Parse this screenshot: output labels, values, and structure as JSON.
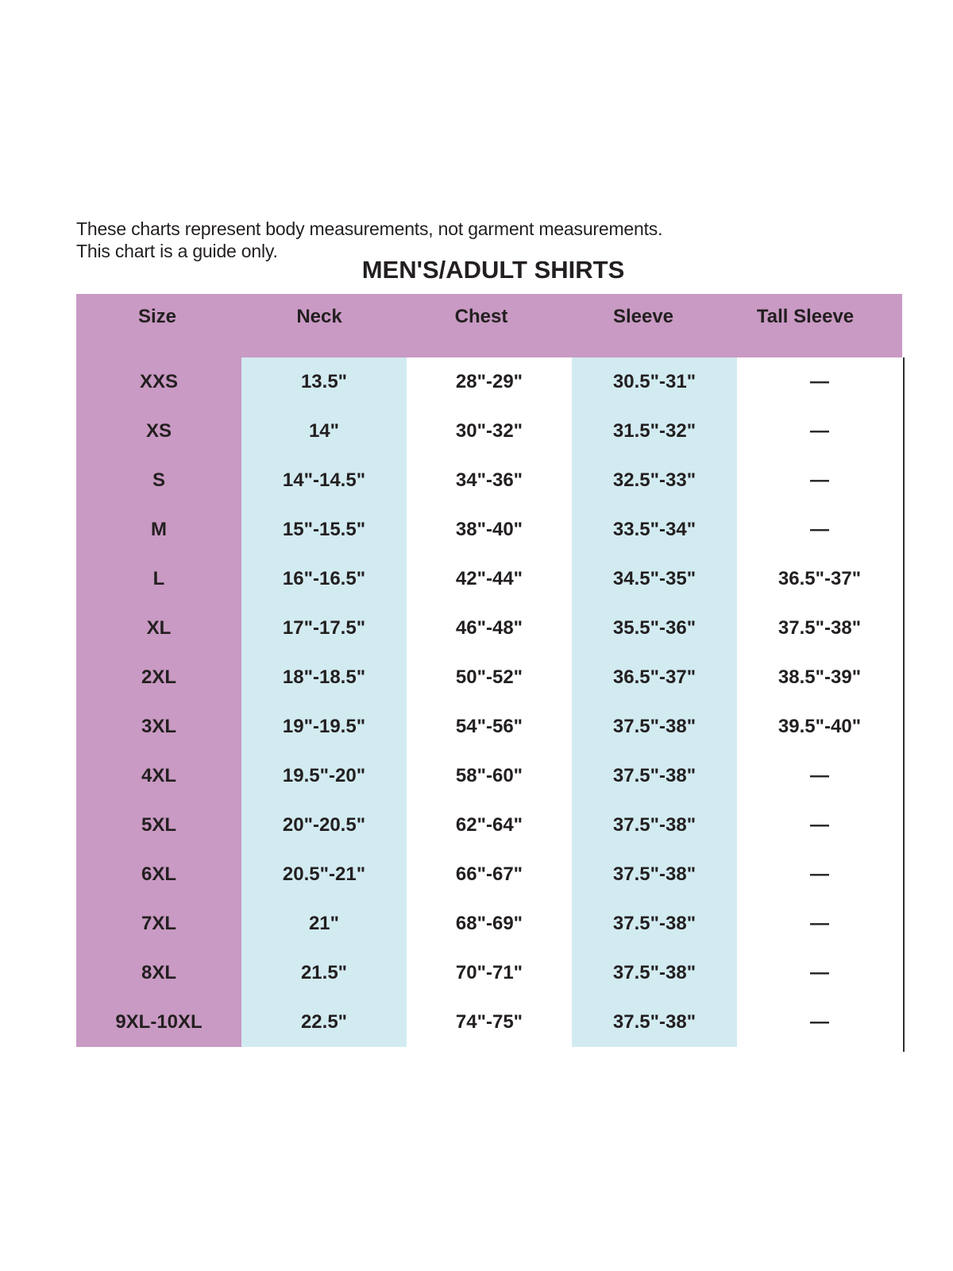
{
  "page": {
    "note_line1": "These charts represent body measurements, not garment measurements.",
    "note_line2": "This chart is a guide only.",
    "title": "MEN'S/ADULT SHIRTS"
  },
  "colors": {
    "header_pink": "#c99ac3",
    "band_blue": "#d2ebf1",
    "text_dark": "#231f20",
    "border_line": "#2f2f2f",
    "page_bg": "#ffffff"
  },
  "table": {
    "columns": [
      "Size",
      "Neck",
      "Chest",
      "Sleeve",
      "Tall Sleeve"
    ],
    "rows": [
      {
        "size": "XXS",
        "neck": "13.5\"",
        "chest": "28\"-29\"",
        "sleeve": "30.5\"-31\"",
        "tall_sleeve": "—"
      },
      {
        "size": "XS",
        "neck": "14\"",
        "chest": "30\"-32\"",
        "sleeve": "31.5\"-32\"",
        "tall_sleeve": "—"
      },
      {
        "size": "S",
        "neck": "14\"-14.5\"",
        "chest": "34\"-36\"",
        "sleeve": "32.5\"-33\"",
        "tall_sleeve": "—"
      },
      {
        "size": "M",
        "neck": "15\"-15.5\"",
        "chest": "38\"-40\"",
        "sleeve": "33.5\"-34\"",
        "tall_sleeve": "—"
      },
      {
        "size": "L",
        "neck": "16\"-16.5\"",
        "chest": "42\"-44\"",
        "sleeve": "34.5\"-35\"",
        "tall_sleeve": "36.5\"-37\""
      },
      {
        "size": "XL",
        "neck": "17\"-17.5\"",
        "chest": "46\"-48\"",
        "sleeve": "35.5\"-36\"",
        "tall_sleeve": "37.5\"-38\""
      },
      {
        "size": "2XL",
        "neck": "18\"-18.5\"",
        "chest": "50\"-52\"",
        "sleeve": "36.5\"-37\"",
        "tall_sleeve": "38.5\"-39\""
      },
      {
        "size": "3XL",
        "neck": "19\"-19.5\"",
        "chest": "54\"-56\"",
        "sleeve": "37.5\"-38\"",
        "tall_sleeve": "39.5\"-40\""
      },
      {
        "size": "4XL",
        "neck": "19.5\"-20\"",
        "chest": "58\"-60\"",
        "sleeve": "37.5\"-38\"",
        "tall_sleeve": "—"
      },
      {
        "size": "5XL",
        "neck": "20\"-20.5\"",
        "chest": "62\"-64\"",
        "sleeve": "37.5\"-38\"",
        "tall_sleeve": "—"
      },
      {
        "size": "6XL",
        "neck": "20.5\"-21\"",
        "chest": "66\"-67\"",
        "sleeve": "37.5\"-38\"",
        "tall_sleeve": "—"
      },
      {
        "size": "7XL",
        "neck": "21\"",
        "chest": "68\"-69\"",
        "sleeve": "37.5\"-38\"",
        "tall_sleeve": "—"
      },
      {
        "size": "8XL",
        "neck": "21.5\"",
        "chest": "70\"-71\"",
        "sleeve": "37.5\"-38\"",
        "tall_sleeve": "—"
      },
      {
        "size": "9XL-10XL",
        "neck": "22.5\"",
        "chest": "74\"-75\"",
        "sleeve": "37.5\"-38\"",
        "tall_sleeve": "—"
      }
    ]
  }
}
